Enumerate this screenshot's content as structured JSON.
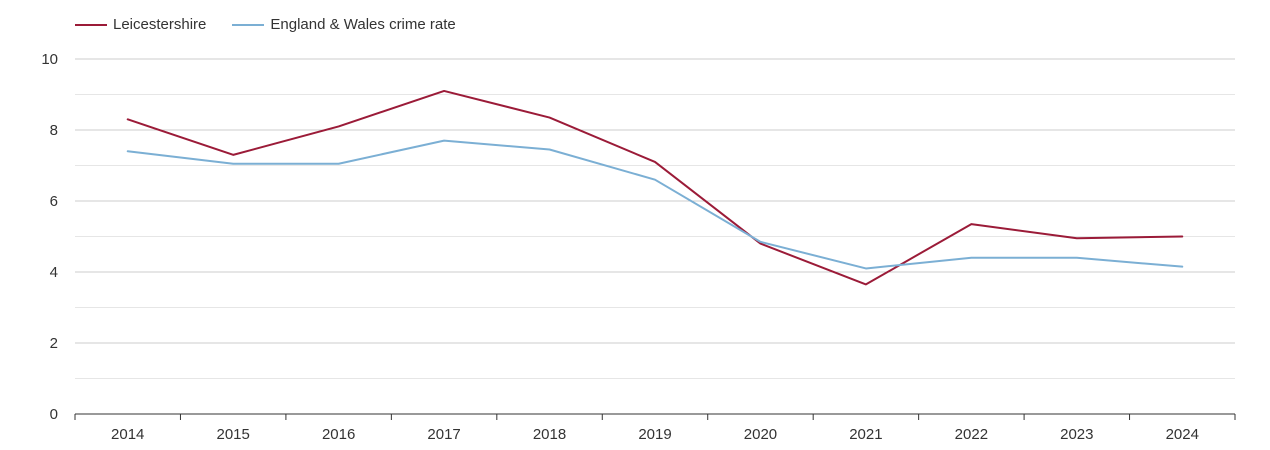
{
  "chart_data": {
    "type": "line",
    "title": "",
    "xlabel": "",
    "ylabel": "",
    "categories": [
      "2014",
      "2015",
      "2016",
      "2017",
      "2018",
      "2019",
      "2020",
      "2021",
      "2022",
      "2023",
      "2024"
    ],
    "ylim": [
      0,
      10
    ],
    "yticks": [
      0,
      2,
      4,
      6,
      8,
      10
    ],
    "grid": true,
    "legend_position": "top-left",
    "series": [
      {
        "name": "Leicestershire",
        "color": "#9b1b38",
        "values": [
          8.3,
          7.3,
          8.1,
          9.1,
          8.35,
          7.1,
          4.8,
          3.65,
          5.35,
          4.95,
          5.0
        ]
      },
      {
        "name": "England & Wales crime rate",
        "color": "#7bafd4",
        "values": [
          7.4,
          7.05,
          7.05,
          7.7,
          7.45,
          6.6,
          4.85,
          4.1,
          4.4,
          4.4,
          4.15
        ]
      }
    ]
  }
}
